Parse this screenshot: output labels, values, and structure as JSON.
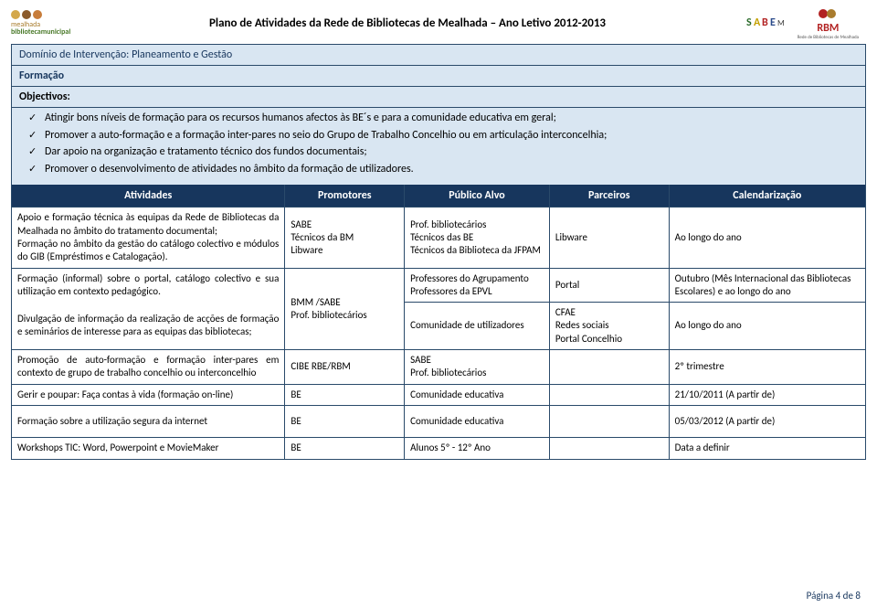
{
  "header": {
    "title": "Plano de Atividades da Rede de Bibliotecas de Mealhada – Ano Letivo 2012-2013",
    "logo_left_top": "mealhada",
    "logo_left_bottom": "bibliotecamunicipal",
    "logo_sabe": "SABEM",
    "logo_sabe_sub": "",
    "logo_rbm": "RBM",
    "logo_rbm_sub": "Rede de Bibliotecas de Mealhada"
  },
  "bands": {
    "dominio": "Domínio de Intervenção: Planeamento e Gestão",
    "formacao": "Formação",
    "objectivos": "Objectivos:"
  },
  "objectivos": [
    "Atingir bons níveis de formação para os recursos humanos afectos às BE´s e para a comunidade educativa em geral;",
    "Promover a auto-formação e a formação inter-pares no seio do Grupo de Trabalho Concelhio ou em articulação interconcelhia;",
    "Dar apoio na organização e tratamento técnico dos fundos documentais;",
    "Promover o desenvolvimento de atividades no âmbito da formação de utilizadores."
  ],
  "table": {
    "headers": {
      "atividades": "Atividades",
      "promotores": "Promotores",
      "publico": "Público Alvo",
      "parceiros": "Parceiros",
      "calendarizacao": "Calendarização"
    },
    "r1": {
      "act": "Apoio e formação técnica às equipas da Rede de Bibliotecas da Mealhada no âmbito do tratamento documental;\nFormação no âmbito da gestão do catálogo colectivo e módulos do GIB (Empréstimos e Catalogação).",
      "prom": "SABE\nTécnicos da BM\nLibware",
      "pub": "Prof. bibliotecários\nTécnicos das BE\nTécnicos da Biblioteca da JFPAM",
      "parc": "Libware",
      "cal": "Ao longo do ano"
    },
    "r2a": {
      "act": "Formação (informal) sobre o portal, catálogo colectivo e sua utilização em contexto pedagógico.",
      "pub": "Professores do Agrupamento\nProfessores da EPVL",
      "parc": "Portal",
      "cal": "Outubro (Mês Internacional das Bibliotecas Escolares) e ao longo do ano"
    },
    "r2b": {
      "act": "Divulgação de informação da realização de acções de formação e seminários de interesse para as equipas das bibliotecas;",
      "prom": "BMM /SABE\nProf. bibliotecários",
      "pub": "Comunidade de utilizadores",
      "parc": "CFAE\nRedes sociais\nPortal Concelhio",
      "cal": "Ao longo do ano"
    },
    "r3": {
      "act": "Promoção de auto-formação e formação inter-pares em contexto de grupo de trabalho concelhio ou interconcelhio",
      "prom": "CIBE RBE/RBM",
      "pub": "SABE\nProf. bibliotecários",
      "parc": "",
      "cal": "2º trimestre"
    },
    "r4": {
      "act": "Gerir e poupar: Faça contas à vida (formação on-line)",
      "prom": "BE",
      "pub": "Comunidade educativa",
      "parc": "",
      "cal": "21/10/2011 (A partir de)"
    },
    "r5": {
      "act": "Formação sobre a utilização segura da internet",
      "prom": "BE",
      "pub": "Comunidade educativa",
      "parc": "",
      "cal": "05/03/2012 (A partir de)"
    },
    "r6": {
      "act": "Workshops TIC: Word, Powerpoint e MovieMaker",
      "prom": "BE",
      "pub": "Alunos 5º - 12º Ano",
      "parc": "",
      "cal": "Data a definir"
    }
  },
  "footer": "Página 4 de 8",
  "colors": {
    "band_bg": "#d9e6f2",
    "header_bg": "#17365d",
    "border": "#2a4a6a"
  }
}
